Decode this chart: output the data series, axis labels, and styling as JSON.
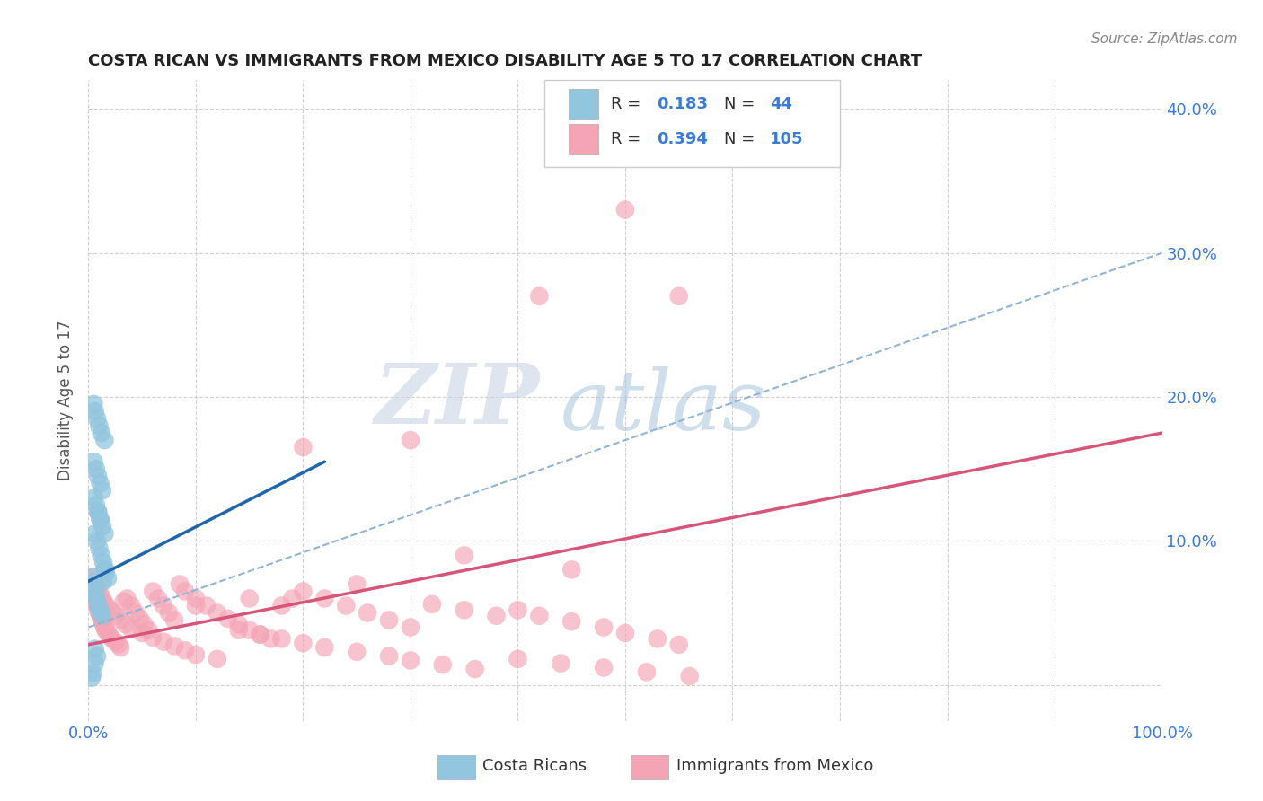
{
  "title": "COSTA RICAN VS IMMIGRANTS FROM MEXICO DISABILITY AGE 5 TO 17 CORRELATION CHART",
  "source": "Source: ZipAtlas.com",
  "ylabel": "Disability Age 5 to 17",
  "xlim": [
    0,
    1.0
  ],
  "ylim": [
    -0.025,
    0.42
  ],
  "color_blue": "#92c5de",
  "color_pink": "#f4a4b4",
  "color_blue_line": "#2166ac",
  "color_pink_line": "#d6567a",
  "color_dashed": "#92b4d4",
  "blue_x": [
    0.003,
    0.004,
    0.005,
    0.006,
    0.007,
    0.008,
    0.009,
    0.01,
    0.012,
    0.013,
    0.014,
    0.015,
    0.016,
    0.018,
    0.005,
    0.006,
    0.008,
    0.01,
    0.012,
    0.015,
    0.005,
    0.007,
    0.009,
    0.011,
    0.013,
    0.005,
    0.007,
    0.009,
    0.011,
    0.006,
    0.008,
    0.01,
    0.012,
    0.014,
    0.016,
    0.009,
    0.011,
    0.013,
    0.006,
    0.008,
    0.015,
    0.003,
    0.004,
    0.006
  ],
  "blue_y": [
    0.065,
    0.07,
    0.075,
    0.068,
    0.062,
    0.058,
    0.055,
    0.053,
    0.05,
    0.048,
    0.072,
    0.08,
    0.078,
    0.074,
    0.195,
    0.19,
    0.185,
    0.18,
    0.175,
    0.17,
    0.155,
    0.15,
    0.145,
    0.14,
    0.135,
    0.13,
    0.125,
    0.12,
    0.115,
    0.105,
    0.1,
    0.095,
    0.09,
    0.085,
    0.08,
    0.12,
    0.115,
    0.11,
    0.025,
    0.02,
    0.105,
    0.005,
    0.008,
    0.015
  ],
  "pink_x": [
    0.003,
    0.004,
    0.005,
    0.006,
    0.007,
    0.008,
    0.009,
    0.01,
    0.011,
    0.012,
    0.013,
    0.014,
    0.015,
    0.016,
    0.018,
    0.02,
    0.022,
    0.025,
    0.028,
    0.03,
    0.033,
    0.036,
    0.04,
    0.044,
    0.048,
    0.052,
    0.056,
    0.06,
    0.065,
    0.07,
    0.075,
    0.08,
    0.085,
    0.09,
    0.1,
    0.11,
    0.12,
    0.13,
    0.14,
    0.15,
    0.16,
    0.17,
    0.18,
    0.19,
    0.2,
    0.22,
    0.24,
    0.26,
    0.28,
    0.3,
    0.32,
    0.35,
    0.38,
    0.4,
    0.42,
    0.45,
    0.48,
    0.5,
    0.53,
    0.55,
    0.003,
    0.005,
    0.007,
    0.009,
    0.011,
    0.013,
    0.015,
    0.018,
    0.022,
    0.026,
    0.03,
    0.035,
    0.04,
    0.05,
    0.06,
    0.07,
    0.08,
    0.09,
    0.1,
    0.12,
    0.14,
    0.16,
    0.18,
    0.2,
    0.22,
    0.25,
    0.28,
    0.3,
    0.33,
    0.36,
    0.4,
    0.44,
    0.48,
    0.52,
    0.56,
    0.35,
    0.45,
    0.25,
    0.15,
    0.1,
    0.55,
    0.5,
    0.42,
    0.3,
    0.2
  ],
  "pink_y": [
    0.068,
    0.065,
    0.062,
    0.06,
    0.058,
    0.055,
    0.052,
    0.05,
    0.048,
    0.046,
    0.044,
    0.042,
    0.04,
    0.038,
    0.036,
    0.034,
    0.032,
    0.03,
    0.028,
    0.026,
    0.058,
    0.06,
    0.055,
    0.05,
    0.046,
    0.042,
    0.038,
    0.065,
    0.06,
    0.055,
    0.05,
    0.045,
    0.07,
    0.065,
    0.06,
    0.055,
    0.05,
    0.046,
    0.042,
    0.038,
    0.035,
    0.032,
    0.055,
    0.06,
    0.065,
    0.06,
    0.055,
    0.05,
    0.045,
    0.04,
    0.056,
    0.052,
    0.048,
    0.052,
    0.048,
    0.044,
    0.04,
    0.036,
    0.032,
    0.028,
    0.075,
    0.072,
    0.069,
    0.066,
    0.063,
    0.06,
    0.057,
    0.054,
    0.051,
    0.048,
    0.045,
    0.042,
    0.039,
    0.036,
    0.033,
    0.03,
    0.027,
    0.024,
    0.021,
    0.018,
    0.038,
    0.035,
    0.032,
    0.029,
    0.026,
    0.023,
    0.02,
    0.017,
    0.014,
    0.011,
    0.018,
    0.015,
    0.012,
    0.009,
    0.006,
    0.09,
    0.08,
    0.07,
    0.06,
    0.055,
    0.27,
    0.33,
    0.27,
    0.17,
    0.165
  ]
}
